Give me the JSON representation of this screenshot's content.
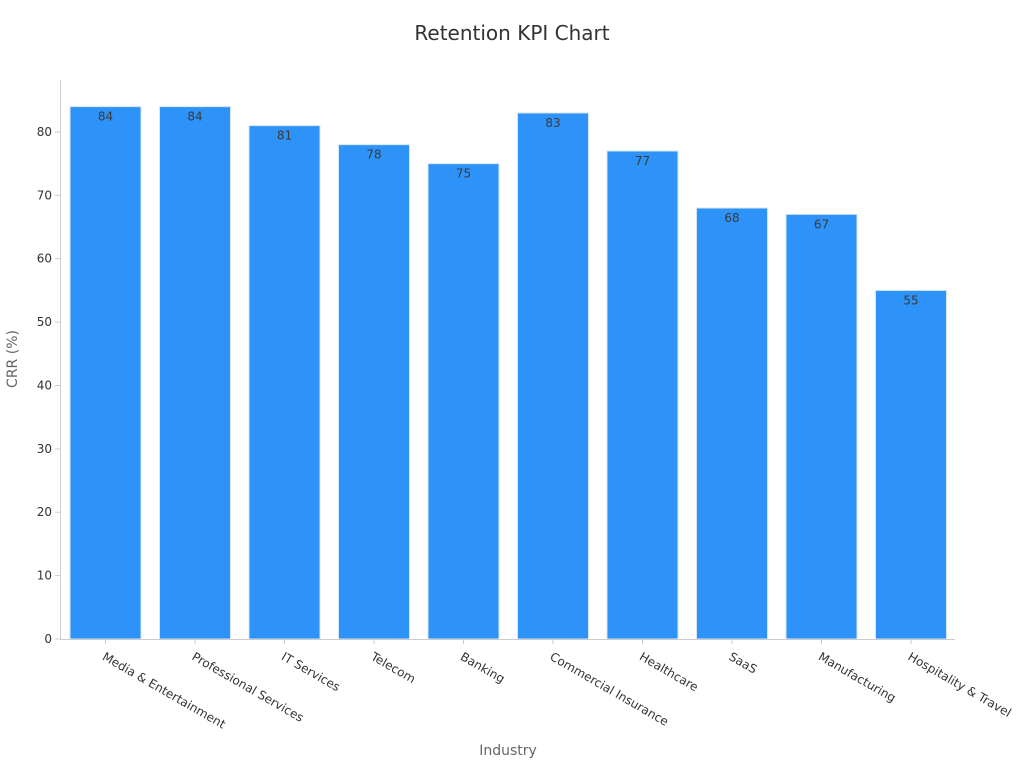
{
  "chart_data": {
    "type": "bar",
    "title": "Retention KPI Chart",
    "xlabel": "Industry",
    "ylabel": "CRR (%)",
    "categories": [
      "Media & Entertainment",
      "Professional Services",
      "IT Services",
      "Telecom",
      "Banking",
      "Commercial Insurance",
      "Healthcare",
      "SaaS",
      "Manufacturing",
      "Hospitality & Travel"
    ],
    "values": [
      84,
      84,
      81,
      78,
      75,
      83,
      77,
      68,
      67,
      55
    ],
    "ylim": [
      0,
      88.2
    ],
    "yticks": [
      0,
      10,
      20,
      30,
      40,
      50,
      60,
      70,
      80
    ],
    "grid": false,
    "legend": "none",
    "colors": {
      "bar": "#2e93f8",
      "bar_edge": "#d6e6f5",
      "axis": "#cccccc",
      "title": "#333333",
      "axis_label": "#666666",
      "tick_label": "#333333",
      "data_label": "#3a3a3a"
    }
  }
}
